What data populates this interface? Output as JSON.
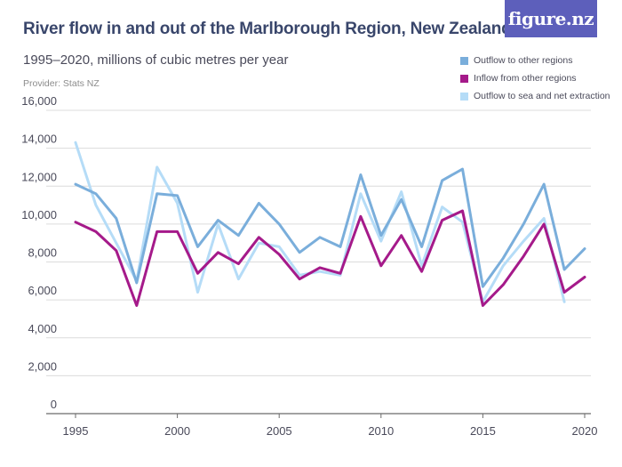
{
  "header": {
    "title": "River flow in and out of the Marlborough Region, New Zealand",
    "subtitle": "1995–2020, millions of cubic metres per year",
    "provider": "Provider: Stats NZ",
    "logo": "figure.nz"
  },
  "colors": {
    "logo_bg": "#5d5fbb",
    "gridline": "#dcdcdc",
    "axis": "#6b6b6b"
  },
  "chart_data": {
    "type": "line",
    "x": [
      1995,
      1996,
      1997,
      1998,
      1999,
      2000,
      2001,
      2002,
      2003,
      2004,
      2005,
      2006,
      2007,
      2008,
      2009,
      2010,
      2011,
      2012,
      2013,
      2014,
      2015,
      2016,
      2017,
      2018,
      2019,
      2020
    ],
    "xticks": [
      "1995",
      "2000",
      "2005",
      "2010",
      "2015",
      "2020"
    ],
    "yticks": [
      "0",
      "2,000",
      "4,000",
      "6,000",
      "8,000",
      "10,000",
      "12,000",
      "14,000",
      "16,000"
    ],
    "ylim": [
      0,
      16000
    ],
    "xlim": [
      1995,
      2020
    ],
    "grid": true,
    "legend_position": "top-right",
    "series": [
      {
        "name": "Outflow to other regions",
        "color": "#7aaedb",
        "values": [
          12100,
          11600,
          10300,
          6900,
          11600,
          11500,
          8800,
          10200,
          9400,
          11100,
          10000,
          8500,
          9300,
          8800,
          12600,
          9400,
          11300,
          8800,
          12300,
          12900,
          6700,
          8200,
          10000,
          12100,
          7600,
          8700
        ]
      },
      {
        "name": "Inflow from other regions",
        "color": "#a51a8a",
        "values": [
          10100,
          9600,
          8600,
          5700,
          9600,
          9600,
          7400,
          8500,
          7900,
          9300,
          8400,
          7100,
          7700,
          7400,
          10400,
          7800,
          9400,
          7500,
          10200,
          10700,
          5700,
          6800,
          8300,
          10000,
          6400,
          7200
        ]
      },
      {
        "name": "Outflow to sea and net extraction",
        "color": "#b5dcf7",
        "values": [
          14300,
          11000,
          9000,
          7000,
          13000,
          11100,
          6400,
          10000,
          7100,
          9000,
          8800,
          7300,
          7500,
          7300,
          11600,
          9100,
          11700,
          7800,
          10900,
          10100,
          5900,
          7800,
          9100,
          10300,
          5900,
          null
        ]
      }
    ]
  }
}
